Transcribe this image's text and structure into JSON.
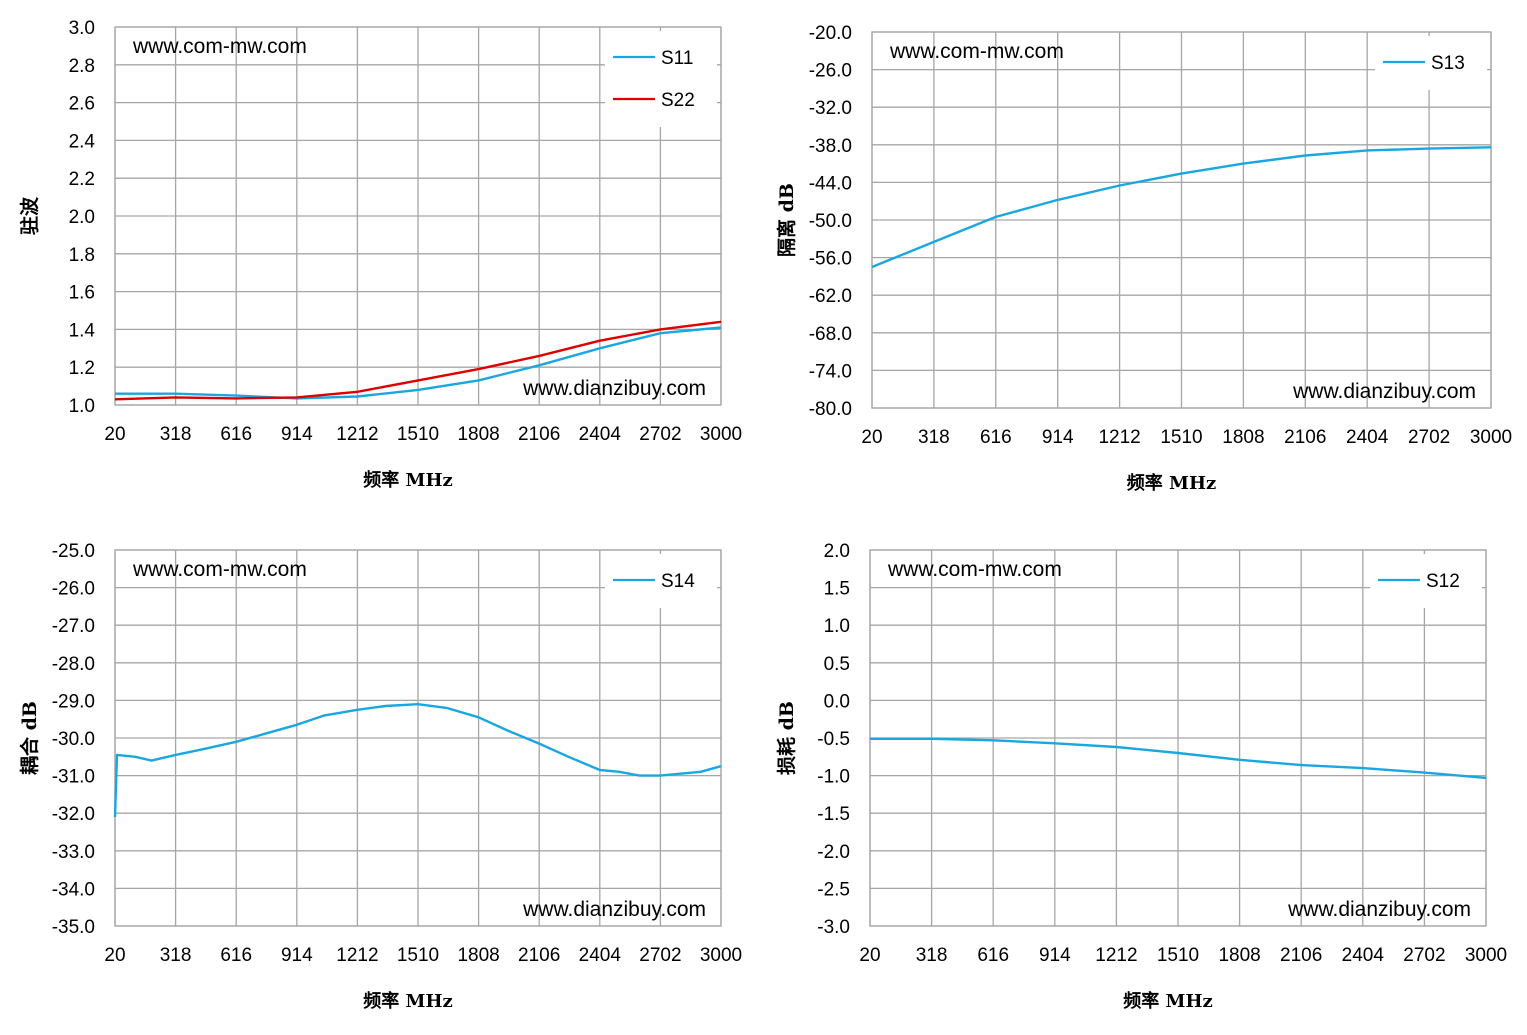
{
  "chart_data": [
    {
      "type": "line",
      "xlabel": "频率 MHz",
      "ylabel": "驻波",
      "xlim": [
        20,
        3000
      ],
      "ylim": [
        1.0,
        3.0
      ],
      "xticks": [
        "20",
        "318",
        "616",
        "914",
        "1212",
        "1510",
        "1808",
        "2106",
        "2404",
        "2702",
        "3000"
      ],
      "yticks": [
        "1.0",
        "1.2",
        "1.4",
        "1.6",
        "1.8",
        "2.0",
        "2.2",
        "2.4",
        "2.6",
        "2.8",
        "3.0"
      ],
      "grid": true,
      "legend": "top-right",
      "watermark_top": "www.com-mw.com",
      "watermark_bottom": "www.dianzibuy.com",
      "series": [
        {
          "name": "S11",
          "color": "#1aa7e0",
          "x": [
            20,
            318,
            616,
            914,
            1212,
            1510,
            1808,
            2106,
            2404,
            2702,
            3000
          ],
          "y": [
            1.06,
            1.06,
            1.05,
            1.035,
            1.045,
            1.08,
            1.13,
            1.21,
            1.3,
            1.38,
            1.41
          ]
        },
        {
          "name": "S22",
          "color": "#dd0000",
          "x": [
            20,
            318,
            616,
            914,
            1212,
            1510,
            1808,
            2106,
            2404,
            2702,
            3000
          ],
          "y": [
            1.03,
            1.04,
            1.035,
            1.04,
            1.07,
            1.13,
            1.19,
            1.26,
            1.34,
            1.4,
            1.44
          ]
        }
      ]
    },
    {
      "type": "line",
      "xlabel": "频率 MHz",
      "ylabel": "隔离 dB",
      "xlim": [
        20,
        3000
      ],
      "ylim": [
        -80.0,
        -20.0
      ],
      "xticks": [
        "20",
        "318",
        "616",
        "914",
        "1212",
        "1510",
        "1808",
        "2106",
        "2404",
        "2702",
        "3000"
      ],
      "yticks": [
        "-80.0",
        "-74.0",
        "-68.0",
        "-62.0",
        "-56.0",
        "-50.0",
        "-44.0",
        "-38.0",
        "-32.0",
        "-26.0",
        "-20.0"
      ],
      "grid": true,
      "legend": "top-right",
      "watermark_top": "www.com-mw.com",
      "watermark_bottom": "www.dianzibuy.com",
      "series": [
        {
          "name": "S13",
          "color": "#1aa7e0",
          "x": [
            20,
            318,
            616,
            914,
            1212,
            1510,
            1808,
            2106,
            2404,
            2702,
            3000
          ],
          "y": [
            -57.5,
            -53.5,
            -49.5,
            -46.8,
            -44.5,
            -42.6,
            -41.0,
            -39.7,
            -38.9,
            -38.6,
            -38.4
          ]
        }
      ]
    },
    {
      "type": "line",
      "xlabel": "频率 MHz",
      "ylabel": "耦合 dB",
      "xlim": [
        20,
        3000
      ],
      "ylim": [
        -35.0,
        -25.0
      ],
      "xticks": [
        "20",
        "318",
        "616",
        "914",
        "1212",
        "1510",
        "1808",
        "2106",
        "2404",
        "2702",
        "3000"
      ],
      "yticks": [
        "-35.0",
        "-34.0",
        "-33.0",
        "-32.0",
        "-31.0",
        "-30.0",
        "-29.0",
        "-28.0",
        "-27.0",
        "-26.0",
        "-25.0"
      ],
      "grid": true,
      "legend": "top-right",
      "watermark_top": "www.com-mw.com",
      "watermark_bottom": "www.dianzibuy.com",
      "series": [
        {
          "name": "S14",
          "color": "#1aa7e0",
          "x": [
            20,
            30,
            120,
            200,
            318,
            450,
            616,
            750,
            914,
            1050,
            1212,
            1350,
            1510,
            1650,
            1808,
            1950,
            2106,
            2250,
            2404,
            2500,
            2600,
            2702,
            2800,
            2900,
            3000
          ],
          "y": [
            -32.1,
            -30.45,
            -30.5,
            -30.6,
            -30.45,
            -30.3,
            -30.1,
            -29.9,
            -29.65,
            -29.4,
            -29.25,
            -29.15,
            -29.1,
            -29.2,
            -29.45,
            -29.8,
            -30.15,
            -30.5,
            -30.85,
            -30.9,
            -31.0,
            -31.0,
            -30.95,
            -30.9,
            -30.75
          ]
        }
      ]
    },
    {
      "type": "line",
      "xlabel": "频率 MHz",
      "ylabel": "损耗 dB",
      "xlim": [
        20,
        3000
      ],
      "ylim": [
        -3.0,
        2.0
      ],
      "xticks": [
        "20",
        "318",
        "616",
        "914",
        "1212",
        "1510",
        "1808",
        "2106",
        "2404",
        "2702",
        "3000"
      ],
      "yticks": [
        "-3.0",
        "-2.5",
        "-2.0",
        "-1.5",
        "-1.0",
        "-0.5",
        "0.0",
        "0.5",
        "1.0",
        "1.5",
        "2.0"
      ],
      "grid": true,
      "legend": "top-right",
      "watermark_top": "www.com-mw.com",
      "watermark_bottom": "www.dianzibuy.com",
      "series": [
        {
          "name": "S12",
          "color": "#1aa7e0",
          "x": [
            20,
            318,
            616,
            914,
            1212,
            1510,
            1808,
            2106,
            2404,
            2702,
            3000
          ],
          "y": [
            -0.51,
            -0.51,
            -0.53,
            -0.57,
            -0.62,
            -0.7,
            -0.79,
            -0.86,
            -0.9,
            -0.96,
            -1.03
          ]
        }
      ]
    }
  ]
}
